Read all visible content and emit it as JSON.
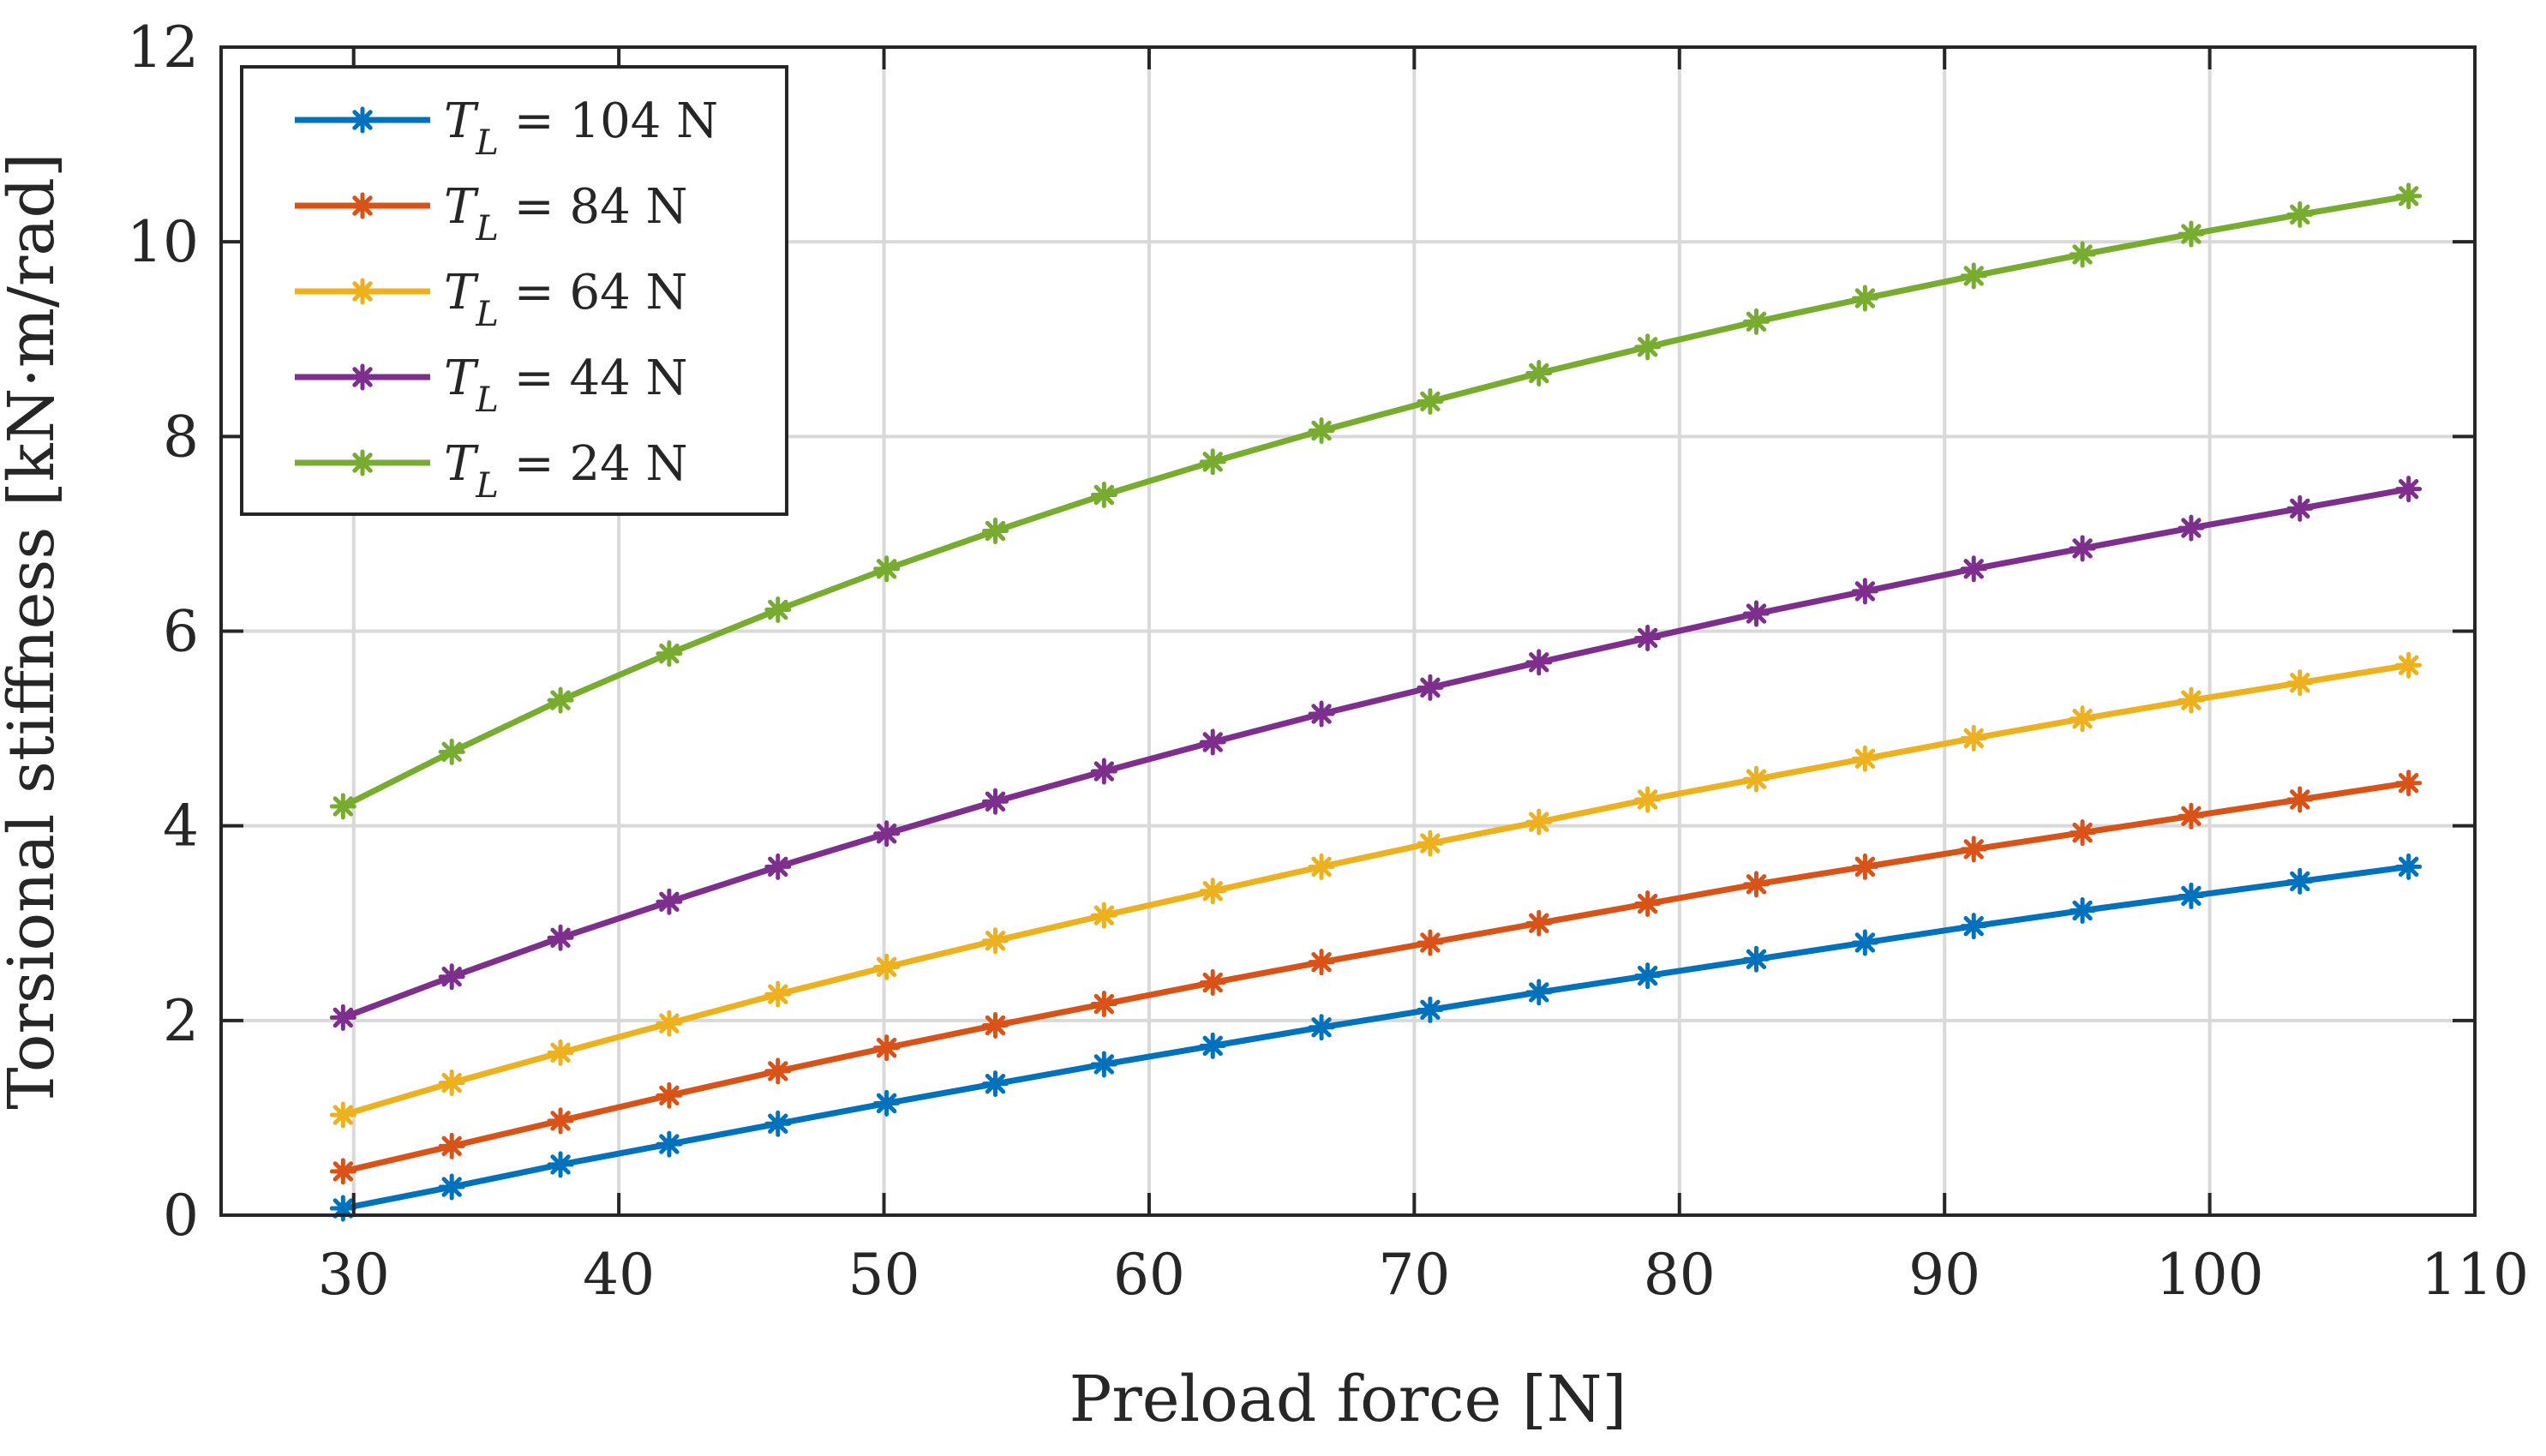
{
  "chart_data": {
    "type": "line",
    "title": "",
    "xlabel": "Preload force [N]",
    "ylabel": "Torsional stiffness [kN·m/rad]",
    "xlim": [
      25,
      110
    ],
    "ylim": [
      0,
      12
    ],
    "xticks": [
      30,
      40,
      50,
      60,
      70,
      80,
      90,
      100,
      110
    ],
    "yticks": [
      0,
      2,
      4,
      6,
      8,
      10,
      12
    ],
    "grid": true,
    "legend_position": "top-left",
    "marker": "asterisk",
    "x": [
      29.6,
      33.7,
      37.8,
      41.9,
      46.0,
      50.1,
      54.2,
      58.3,
      62.4,
      66.5,
      70.6,
      74.7,
      78.8,
      82.9,
      87.0,
      91.1,
      95.2,
      99.3,
      103.4,
      107.5
    ],
    "series": [
      {
        "name": "T_L = 104 N",
        "legend_symbol": "T",
        "legend_subscript": "L",
        "legend_rest": " = 104 N",
        "color": "#0072BD",
        "values": [
          0.07,
          0.29,
          0.52,
          0.73,
          0.94,
          1.15,
          1.35,
          1.55,
          1.74,
          1.93,
          2.11,
          2.29,
          2.46,
          2.63,
          2.8,
          2.97,
          3.13,
          3.28,
          3.43,
          3.58
        ]
      },
      {
        "name": "T_L = 84 N",
        "legend_symbol": "T",
        "legend_subscript": "L",
        "legend_rest": " = 84 N",
        "color": "#D95319",
        "values": [
          0.45,
          0.71,
          0.97,
          1.23,
          1.48,
          1.72,
          1.95,
          2.17,
          2.39,
          2.6,
          2.8,
          3.0,
          3.2,
          3.4,
          3.58,
          3.76,
          3.93,
          4.1,
          4.27,
          4.44
        ]
      },
      {
        "name": "T_L = 64 N",
        "legend_symbol": "T",
        "legend_subscript": "L",
        "legend_rest": " = 64 N",
        "color": "#EDB120",
        "values": [
          1.03,
          1.36,
          1.67,
          1.97,
          2.27,
          2.55,
          2.82,
          3.08,
          3.33,
          3.58,
          3.82,
          4.04,
          4.27,
          4.48,
          4.69,
          4.9,
          5.1,
          5.29,
          5.47,
          5.65
        ]
      },
      {
        "name": "T_L = 44 N",
        "legend_symbol": "T",
        "legend_subscript": "L",
        "legend_rest": " = 44 N",
        "color": "#7E2F8E",
        "values": [
          2.03,
          2.45,
          2.85,
          3.22,
          3.58,
          3.92,
          4.25,
          4.56,
          4.86,
          5.15,
          5.42,
          5.68,
          5.93,
          6.18,
          6.41,
          6.64,
          6.85,
          7.06,
          7.26,
          7.46
        ]
      },
      {
        "name": "T_L = 24 N",
        "legend_symbol": "T",
        "legend_subscript": "L",
        "legend_rest": " = 24 N",
        "color": "#77AC30",
        "values": [
          4.2,
          4.76,
          5.29,
          5.77,
          6.22,
          6.64,
          7.03,
          7.4,
          7.74,
          8.06,
          8.36,
          8.65,
          8.92,
          9.18,
          9.42,
          9.65,
          9.87,
          10.08,
          10.28,
          10.47
        ]
      }
    ]
  }
}
